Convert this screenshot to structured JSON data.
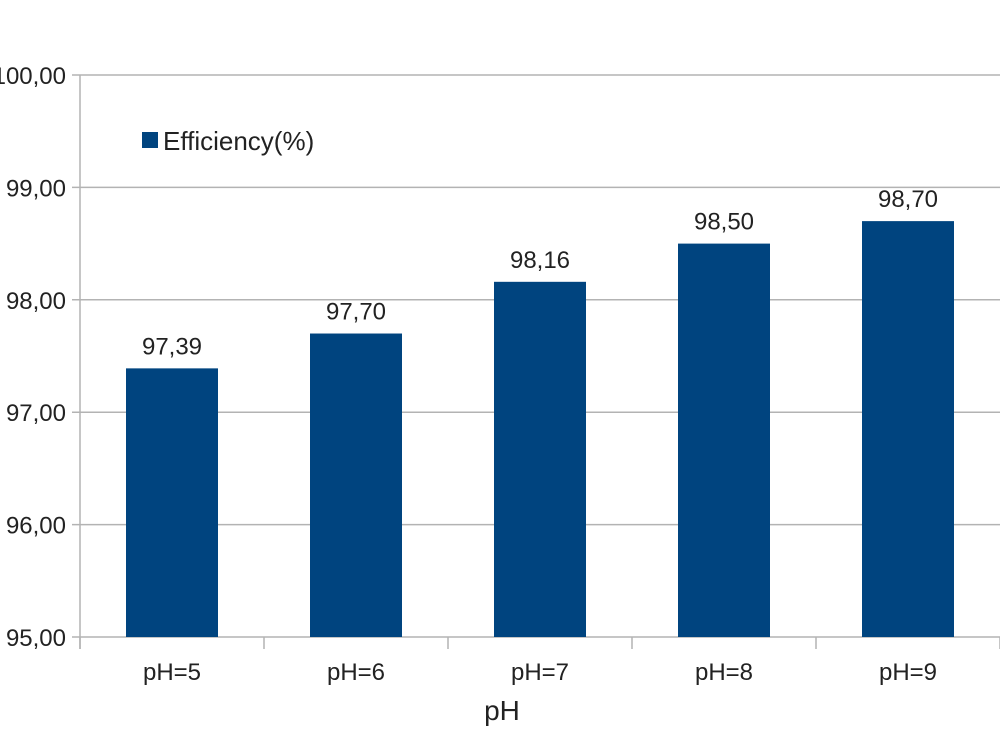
{
  "chart_data": {
    "type": "bar",
    "categories": [
      "pH=5",
      "pH=6",
      "pH=7",
      "pH=8",
      "pH=9"
    ],
    "series": [
      {
        "name": "Efficiency(%)",
        "values": [
          97.39,
          97.7,
          98.16,
          98.5,
          98.7
        ],
        "labels": [
          "97,39",
          "97,70",
          "98,16",
          "98,50",
          "98,70"
        ],
        "color": "#00447f"
      }
    ],
    "xlabel": "pH",
    "ylabel": "",
    "ylim": [
      95,
      100
    ],
    "yticks": [
      95,
      96,
      97,
      98,
      99,
      100
    ],
    "ytick_labels": [
      "95,00",
      "96,00",
      "97,00",
      "98,00",
      "99,00",
      "100,00"
    ],
    "grid": true,
    "legend_position": "top-left"
  }
}
